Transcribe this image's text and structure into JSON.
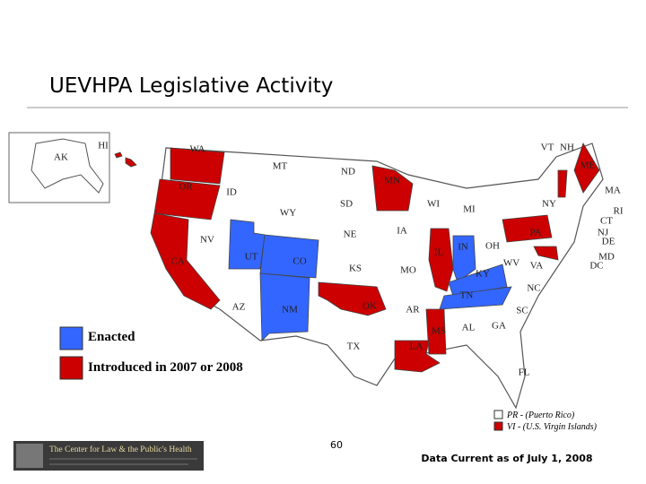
{
  "title": "UEVHPA Legislative Activity",
  "legend": [
    {
      "label": "Enacted",
      "color": "#3366ff"
    },
    {
      "label": "Introduced in 2007 or 2008",
      "color": "#cc0000"
    }
  ],
  "states": [
    {
      "label": "HI",
      "color": "#cc0000"
    },
    {
      "label": "AK",
      "color": null
    },
    {
      "label": "WA",
      "color": "#cc0000"
    },
    {
      "label": "MT",
      "color": null
    },
    {
      "label": "ND",
      "color": null
    },
    {
      "label": "MN",
      "color": "#cc0000"
    },
    {
      "label": "VT",
      "color": "#cc0000"
    },
    {
      "label": "NH",
      "color": null
    },
    {
      "label": "ME",
      "color": "#cc0000"
    },
    {
      "label": "OR",
      "color": "#cc0000"
    },
    {
      "label": "ID",
      "color": null
    },
    {
      "label": "SD",
      "color": null
    },
    {
      "label": "WI",
      "color": null
    },
    {
      "label": "MI",
      "color": null
    },
    {
      "label": "NY",
      "color": null
    },
    {
      "label": "MA",
      "color": null
    },
    {
      "label": "RI",
      "color": null
    },
    {
      "label": "CT",
      "color": null
    },
    {
      "label": "WY",
      "color": null
    },
    {
      "label": "NE",
      "color": null
    },
    {
      "label": "IA",
      "color": null
    },
    {
      "label": "PA",
      "color": "#cc0000"
    },
    {
      "label": "NJ",
      "color": null
    },
    {
      "label": "DE",
      "color": null
    },
    {
      "label": "MD",
      "color": "#cc0000"
    },
    {
      "label": "DC",
      "color": null
    },
    {
      "label": "NV",
      "color": null
    },
    {
      "label": "CA",
      "color": "#cc0000"
    },
    {
      "label": "UT",
      "color": "#3366ff"
    },
    {
      "label": "CO",
      "color": "#3366ff"
    },
    {
      "label": "KS",
      "color": null
    },
    {
      "label": "MO",
      "color": null
    },
    {
      "label": "IL",
      "color": "#cc0000"
    },
    {
      "label": "IN",
      "color": "#3366ff"
    },
    {
      "label": "OH",
      "color": null
    },
    {
      "label": "WV",
      "color": null
    },
    {
      "label": "VA",
      "color": null
    },
    {
      "label": "KY",
      "color": "#3366ff"
    },
    {
      "label": "NC",
      "color": null
    },
    {
      "label": "TN",
      "color": "#3366ff"
    },
    {
      "label": "AZ",
      "color": null
    },
    {
      "label": "NM",
      "color": "#3366ff"
    },
    {
      "label": "OK",
      "color": "#cc0000"
    },
    {
      "label": "AR",
      "color": null
    },
    {
      "label": "SC",
      "color": null
    },
    {
      "label": "MS",
      "color": "#cc0000"
    },
    {
      "label": "AL",
      "color": null
    },
    {
      "label": "GA",
      "color": null
    },
    {
      "label": "TX",
      "color": null
    },
    {
      "label": "LA",
      "color": "#cc0000"
    },
    {
      "label": "FL",
      "color": null
    }
  ],
  "footnotes": [
    "PR - (Puerto Rico)",
    "VI - (U.S. Virgin Islands)"
  ],
  "footnote_colors": [
    "#ffffff",
    "#cc0000"
  ],
  "logo_text": "The Center for Law & the Public's Health",
  "page_number": "60",
  "data_current": "Data Current as of July 1, 2008"
}
